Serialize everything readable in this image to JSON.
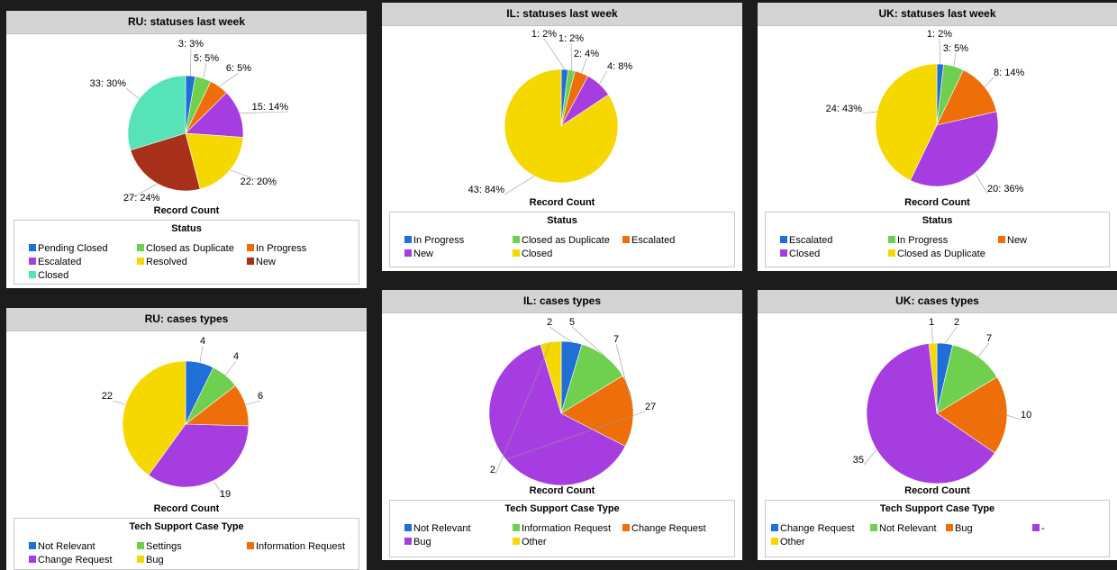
{
  "chart_data": [
    {
      "id": "ru-status",
      "type": "pie",
      "title": "RU: statuses last week",
      "measure": "Record Count",
      "legend_title": "Status",
      "slices": [
        {
          "label": "Pending Closed",
          "value": 3,
          "text": "3: 3%",
          "color": "#1f6fd6"
        },
        {
          "label": "Closed as Duplicate",
          "value": 5,
          "text": "5: 5%",
          "color": "#6fcf4e"
        },
        {
          "label": "In Progress",
          "value": 6,
          "text": "6: 5%",
          "color": "#ee6f0a"
        },
        {
          "label": "Escalated",
          "value": 15,
          "text": "15: 14%",
          "color": "#a63de0"
        },
        {
          "label": "Resolved",
          "value": 22,
          "text": "22: 20%",
          "color": "#f5d800"
        },
        {
          "label": "New",
          "value": 27,
          "text": "27: 24%",
          "color": "#a8301a"
        },
        {
          "label": "Closed",
          "value": 33,
          "text": "33: 30%",
          "color": "#55e3b7"
        }
      ]
    },
    {
      "id": "il-status",
      "type": "pie",
      "title": "IL: statuses last week",
      "measure": "Record Count",
      "legend_title": "Status",
      "slices": [
        {
          "label": "In Progress",
          "value": 1,
          "text": "1: 2%",
          "color": "#1f6fd6"
        },
        {
          "label": "Closed as Duplicate",
          "value": 1,
          "text": "1: 2%",
          "color": "#6fcf4e"
        },
        {
          "label": "Escalated",
          "value": 2,
          "text": "2: 4%",
          "color": "#ee6f0a"
        },
        {
          "label": "New",
          "value": 4,
          "text": "4: 8%",
          "color": "#a63de0"
        },
        {
          "label": "Closed",
          "value": 43,
          "text": "43: 84%",
          "color": "#f5d800"
        }
      ]
    },
    {
      "id": "uk-status",
      "type": "pie",
      "title": "UK: statuses last week",
      "measure": "Record Count",
      "legend_title": "Status",
      "slices": [
        {
          "label": "Escalated",
          "value": 1,
          "text": "1: 2%",
          "color": "#1f6fd6"
        },
        {
          "label": "In Progress",
          "value": 3,
          "text": "3: 5%",
          "color": "#6fcf4e"
        },
        {
          "label": "New",
          "value": 8,
          "text": "8: 14%",
          "color": "#ee6f0a"
        },
        {
          "label": "Closed",
          "value": 20,
          "text": "20: 36%",
          "color": "#a63de0"
        },
        {
          "label": "Closed as Duplicate",
          "value": 24,
          "text": "24: 43%",
          "color": "#f5d800"
        }
      ]
    },
    {
      "id": "ru-types",
      "type": "pie",
      "title": "RU: cases types",
      "measure": "Record Count",
      "legend_title": "Tech Support Case Type",
      "slices": [
        {
          "label": "Not Relevant",
          "value": 4,
          "text": "4",
          "color": "#1f6fd6"
        },
        {
          "label": "Settings",
          "value": 4,
          "text": "4",
          "color": "#6fcf4e"
        },
        {
          "label": "Information Request",
          "value": 6,
          "text": "6",
          "color": "#ee6f0a"
        },
        {
          "label": "Change Request",
          "value": 19,
          "text": "19",
          "color": "#a63de0"
        },
        {
          "label": "Bug",
          "value": 22,
          "text": "22",
          "color": "#f5d800"
        }
      ]
    },
    {
      "id": "il-types",
      "type": "pie",
      "title": "IL: cases types",
      "measure": "Record Count",
      "legend_title": "Tech Support Case Type",
      "slices": [
        {
          "label": "Not Relevant",
          "value": 2,
          "text": "2",
          "color": "#1f6fd6"
        },
        {
          "label": "Information Request",
          "value": 5,
          "text": "5",
          "color": "#6fcf4e"
        },
        {
          "label": "Change Request",
          "value": 7,
          "text": "7",
          "color": "#ee6f0a"
        },
        {
          "label": "Bug",
          "value": 27,
          "text": "27",
          "color": "#a63de0"
        },
        {
          "label": "Other",
          "value": 2,
          "text": "2",
          "color": "#f5d800"
        }
      ]
    },
    {
      "id": "uk-types",
      "type": "pie",
      "title": "UK: cases types",
      "measure": "Record Count",
      "legend_title": "Tech Support Case Type",
      "slices": [
        {
          "label": "Change Request",
          "value": 2,
          "text": "2",
          "color": "#1f6fd6"
        },
        {
          "label": "Not Relevant",
          "value": 7,
          "text": "7",
          "color": "#6fcf4e"
        },
        {
          "label": "Bug",
          "value": 10,
          "text": "10",
          "color": "#ee6f0a"
        },
        {
          "label": "-",
          "value": 35,
          "text": "35",
          "color": "#a63de0"
        },
        {
          "label": "Other",
          "value": 1,
          "text": "1",
          "color": "#f5d800"
        }
      ]
    }
  ]
}
